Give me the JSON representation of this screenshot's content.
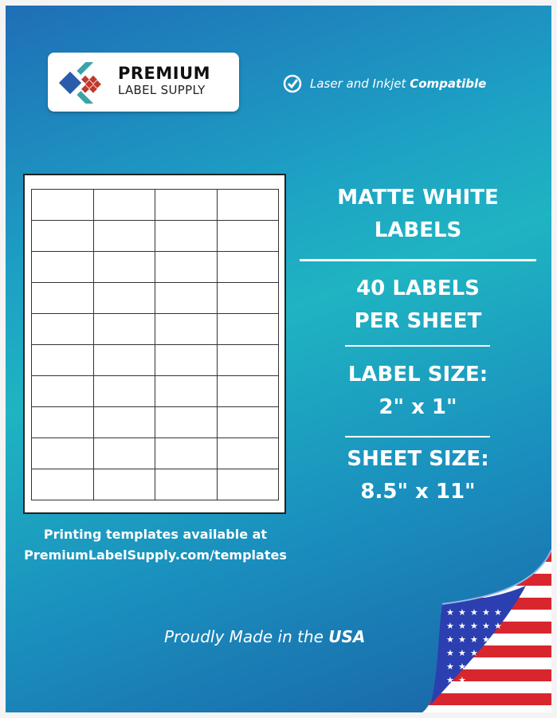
{
  "brand": {
    "name_line1": "PREMIUM",
    "name_line2": "LABEL SUPPLY",
    "logo_colors": [
      "#2a5caa",
      "#3aa3a8",
      "#c0392b"
    ]
  },
  "compatibility": {
    "icon": "check-circle-icon",
    "text": "Laser and Inkjet ",
    "bold": "Compatible"
  },
  "sheet": {
    "columns": 4,
    "rows": 10
  },
  "specs": {
    "title_line1": "MATTE WHITE",
    "title_line2": "LABELS",
    "count_line1": "40 LABELS",
    "count_line2": "PER SHEET",
    "label_size_line1": "LABEL SIZE:",
    "label_size_line2": "2\" x 1\"",
    "sheet_size_line1": "SHEET SIZE:",
    "sheet_size_line2": "8.5\" x 11\""
  },
  "templates": {
    "line1": "Printing templates available at",
    "line2": "PremiumLabelSupply.com/templates"
  },
  "made_in": {
    "text": "Proudly Made in the ",
    "bold": "USA"
  }
}
